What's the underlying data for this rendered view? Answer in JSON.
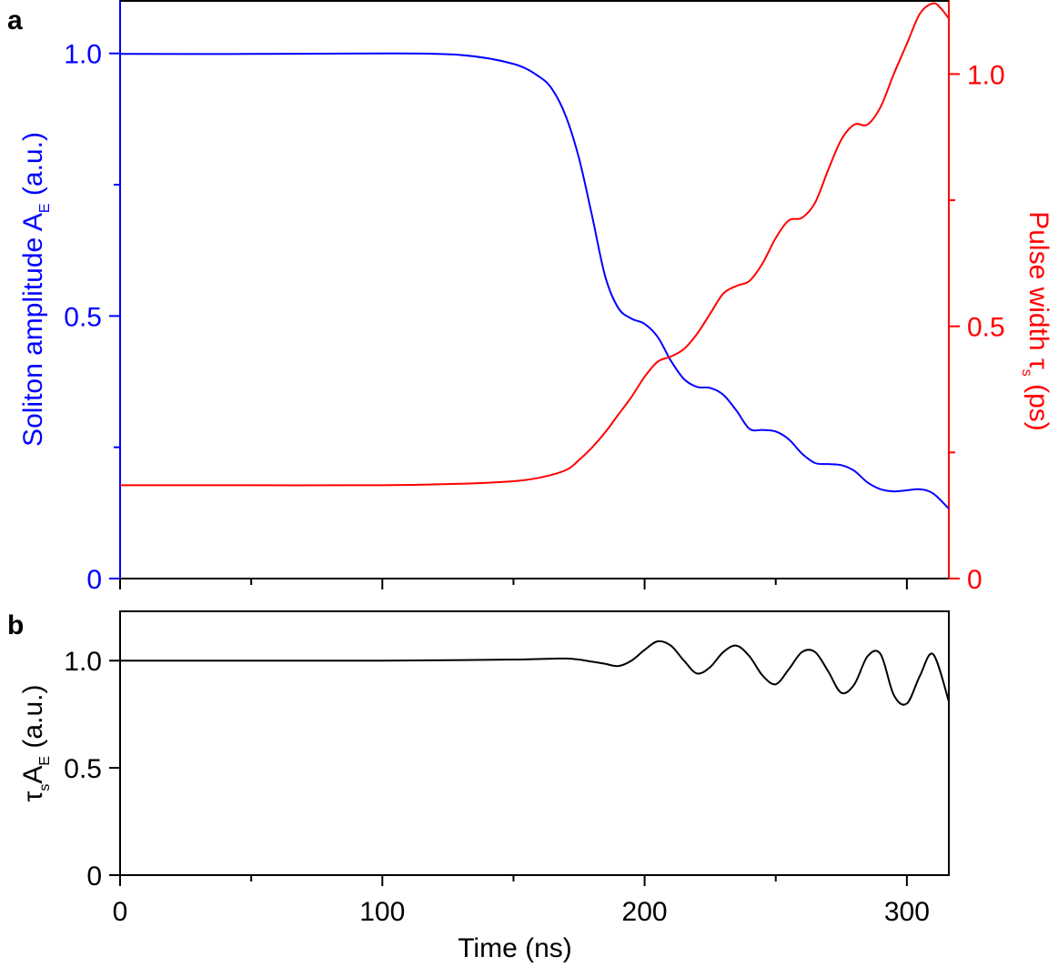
{
  "chart_data": [
    {
      "panel": "a",
      "type": "line",
      "xlim": [
        0,
        316
      ],
      "x_major_ticks": [
        0,
        100,
        200,
        300
      ],
      "x_minor_ticks": [
        50,
        150,
        250
      ],
      "ylim_left": [
        0,
        1.1
      ],
      "y_ticks_left": [
        0,
        0.5,
        1.0
      ],
      "y_tick_labels_left": [
        "0",
        "0.5",
        "1.0"
      ],
      "y_minor_ticks_left": [
        0.25,
        0.75
      ],
      "ylabel_left_main": "Soliton amplitude A",
      "ylabel_left_sub": "E",
      "ylabel_left_tail": " (a.u.)",
      "ylim_right": [
        0,
        1.145
      ],
      "y_ticks_right": [
        0,
        0.5,
        1.0
      ],
      "y_tick_labels_right": [
        "0",
        "0.5",
        "1.0"
      ],
      "y_minor_ticks_right": [
        0.25,
        0.75
      ],
      "ylabel_right_main": "Pulse width τ",
      "ylabel_right_sub": "s",
      "ylabel_right_tail": " (ps)",
      "series": [
        {
          "axis": "left",
          "color": "#0000ff",
          "x": [
            0,
            50,
            100,
            130,
            150,
            160,
            165,
            170,
            175,
            180,
            185,
            190,
            195,
            200,
            205,
            210,
            215,
            220,
            225,
            230,
            235,
            240,
            245,
            250,
            255,
            260,
            265,
            270,
            275,
            280,
            285,
            290,
            295,
            300,
            305,
            310,
            316
          ],
          "y": [
            0.999,
            0.999,
            1.0,
            0.997,
            0.98,
            0.955,
            0.93,
            0.88,
            0.8,
            0.69,
            0.575,
            0.515,
            0.495,
            0.485,
            0.46,
            0.415,
            0.38,
            0.365,
            0.363,
            0.35,
            0.32,
            0.285,
            0.283,
            0.28,
            0.265,
            0.238,
            0.22,
            0.218,
            0.216,
            0.205,
            0.183,
            0.17,
            0.166,
            0.168,
            0.17,
            0.162,
            0.133
          ]
        },
        {
          "axis": "right",
          "color": "#ff0000",
          "x": [
            0,
            50,
            100,
            130,
            150,
            160,
            170,
            175,
            180,
            185,
            190,
            195,
            200,
            205,
            210,
            215,
            220,
            225,
            230,
            235,
            240,
            245,
            250,
            255,
            260,
            265,
            270,
            275,
            280,
            285,
            290,
            295,
            300,
            305,
            310,
            313,
            316
          ],
          "y": [
            0.185,
            0.185,
            0.185,
            0.188,
            0.193,
            0.2,
            0.215,
            0.235,
            0.26,
            0.29,
            0.325,
            0.36,
            0.4,
            0.43,
            0.44,
            0.455,
            0.485,
            0.525,
            0.565,
            0.58,
            0.59,
            0.625,
            0.675,
            0.71,
            0.715,
            0.745,
            0.81,
            0.87,
            0.9,
            0.9,
            0.935,
            1.0,
            1.06,
            1.12,
            1.14,
            1.13,
            1.11
          ]
        }
      ]
    },
    {
      "panel": "b",
      "type": "line",
      "xlim": [
        0,
        316
      ],
      "x_major_ticks": [
        0,
        100,
        200,
        300
      ],
      "x_tick_labels": [
        "0",
        "100",
        "200",
        "300"
      ],
      "x_minor_ticks": [
        50,
        150,
        250
      ],
      "xlabel": "Time (ns)",
      "ylim": [
        0,
        1.23
      ],
      "y_ticks": [
        0,
        0.5,
        1.0
      ],
      "y_tick_labels": [
        "0",
        "0.5",
        "1.0"
      ],
      "ylabel_main": "τ",
      "ylabel_sub1": "s",
      "ylabel_mid": "A",
      "ylabel_sub2": "E",
      "ylabel_tail": " (a.u.)",
      "series": [
        {
          "color": "#000000",
          "x": [
            0,
            50,
            100,
            150,
            170,
            180,
            185,
            190,
            195,
            200,
            205,
            210,
            215,
            220,
            225,
            230,
            235,
            240,
            245,
            250,
            255,
            260,
            265,
            270,
            275,
            280,
            285,
            290,
            295,
            300,
            305,
            310,
            316
          ],
          "y": [
            1.0,
            1.0,
            1.0,
            1.005,
            1.01,
            0.995,
            0.985,
            0.975,
            1.0,
            1.05,
            1.09,
            1.07,
            1.0,
            0.94,
            0.97,
            1.04,
            1.07,
            1.02,
            0.93,
            0.89,
            0.96,
            1.04,
            1.04,
            0.95,
            0.85,
            0.89,
            1.02,
            1.03,
            0.84,
            0.8,
            0.93,
            1.03,
            0.81
          ]
        }
      ]
    }
  ],
  "labels": {
    "panel_a": "a",
    "panel_b": "b"
  }
}
